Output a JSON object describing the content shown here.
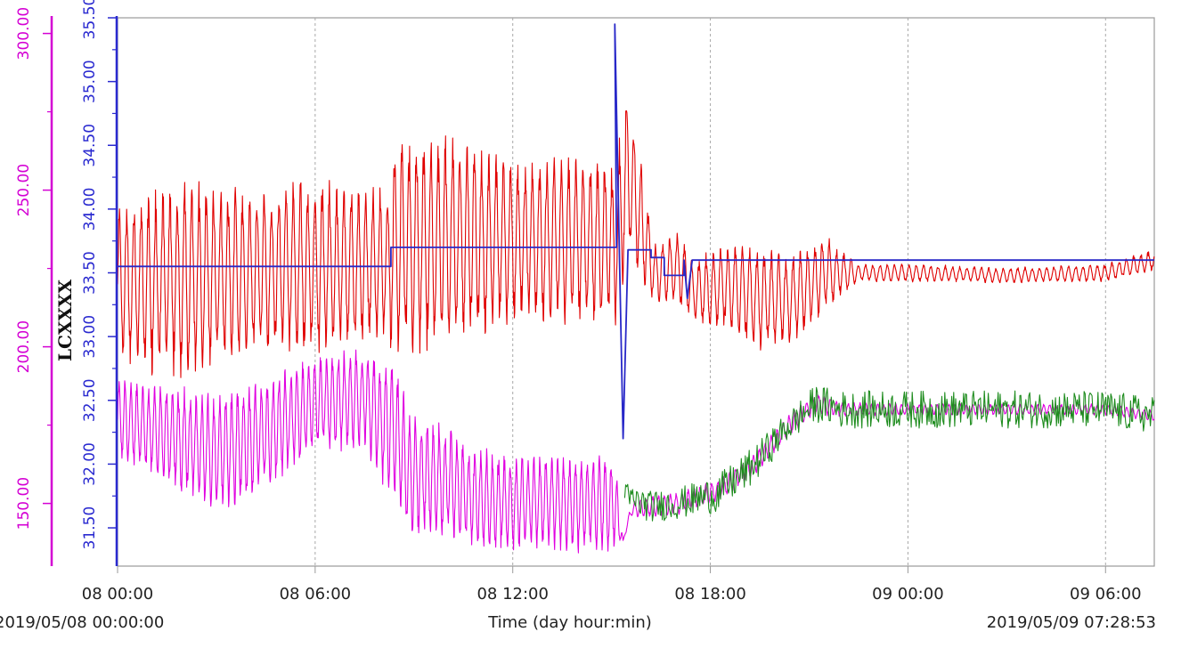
{
  "chart_data": {
    "type": "line",
    "title": "",
    "xlabel": "Time (day hour:min)",
    "start_label": "2019/05/08 00:00:00",
    "end_label": "2019/05/09 07:28:53",
    "y_axis_title": "LCXXXX",
    "x_axis": {
      "unit": "hours from 2019/05/08 00:00",
      "range": [
        0,
        31.48
      ],
      "ticks": [
        {
          "value": 0,
          "label": "08 00:00"
        },
        {
          "value": 6,
          "label": "08 06:00"
        },
        {
          "value": 12,
          "label": "08 12:00"
        },
        {
          "value": 18,
          "label": "08 18:00"
        },
        {
          "value": 24,
          "label": "09 00:00"
        },
        {
          "value": 30,
          "label": "09 06:00"
        }
      ]
    },
    "y_axis_left_outer": {
      "color": "#d400d4",
      "range": [
        130,
        305
      ],
      "ticks": [
        "150.00",
        "200.00",
        "250.00",
        "300.00"
      ]
    },
    "y_axis_left_inner": {
      "color": "#2a2ad0",
      "range": [
        31.2,
        35.5
      ],
      "ticks": [
        "31.50",
        "32.00",
        "32.50",
        "33.00",
        "33.50",
        "34.00",
        "34.50",
        "35.00",
        "35.50"
      ]
    },
    "grid": "vertical dashed at x ticks",
    "legend": "none",
    "series": [
      {
        "axis": "inner",
        "color": "#e00000",
        "style": "oscillating",
        "x": [
          0,
          2,
          4,
          6,
          8.2,
          8.4,
          10,
          12,
          14,
          15.15,
          15.5,
          16.3,
          17,
          17.5,
          18.5,
          19.5,
          20.5,
          21.5,
          22.5,
          24,
          27,
          30,
          31.48
        ],
        "mean": [
          33.4,
          33.45,
          33.5,
          33.55,
          33.55,
          33.7,
          33.75,
          33.75,
          33.75,
          33.75,
          34.3,
          33.5,
          33.55,
          33.35,
          33.4,
          33.3,
          33.3,
          33.5,
          33.5,
          33.5,
          33.48,
          33.5,
          33.6
        ],
        "amp": [
          0.55,
          0.65,
          0.55,
          0.6,
          0.5,
          0.75,
          0.7,
          0.55,
          0.55,
          0.55,
          0.6,
          0.2,
          0.25,
          0.2,
          0.3,
          0.35,
          0.3,
          0.25,
          0.06,
          0.06,
          0.05,
          0.06,
          0.07
        ],
        "period_h": 0.22
      },
      {
        "axis": "inner",
        "color": "#2828c8",
        "style": "step",
        "x": [
          0,
          8.3,
          8.3,
          15.15,
          15.1,
          15.35,
          15.5,
          16.2,
          16.2,
          16.6,
          16.6,
          17.2,
          17.2,
          17.3,
          17.45,
          18,
          24,
          31.48
        ],
        "y": [
          33.55,
          33.55,
          33.7,
          33.7,
          35.45,
          32.2,
          33.68,
          33.68,
          33.62,
          33.62,
          33.48,
          33.48,
          33.6,
          33.3,
          33.6,
          33.6,
          33.6,
          33.6
        ]
      },
      {
        "axis": "outer",
        "color": "#e000e0",
        "style": "oscillating",
        "x": [
          0,
          1.5,
          3,
          4.5,
          6,
          7.5,
          8,
          8.4,
          8.8,
          10,
          11,
          12,
          13,
          14,
          15.1,
          15.35,
          15.6,
          16.2,
          17,
          18.2,
          19.3,
          20.3,
          21.2,
          22,
          24,
          27,
          30,
          31.48
        ],
        "mean": [
          177,
          172,
          166,
          172,
          182,
          184,
          176,
          175,
          160,
          157,
          151,
          150,
          151,
          150,
          150,
          138,
          148,
          149,
          150,
          154,
          162,
          174,
          182,
          180,
          180,
          180,
          180,
          178
        ],
        "amp": [
          11,
          14,
          16,
          16,
          13,
          14,
          16,
          19,
          17,
          15,
          14,
          13,
          13,
          13,
          13,
          0,
          2,
          3,
          3,
          3,
          3,
          3,
          3,
          2,
          1.5,
          1.5,
          1.5,
          1.5
        ],
        "period_h": 0.18
      },
      {
        "axis": "outer",
        "color": "#1e8c1e",
        "style": "noisy",
        "x": [
          15.4,
          16.2,
          17,
          18.2,
          19.3,
          20.3,
          21.2,
          22,
          24,
          27,
          30,
          31.48
        ],
        "mean": [
          152,
          149,
          150,
          153,
          162,
          174,
          182,
          180,
          180,
          180,
          180,
          178
        ],
        "amp": [
          5,
          5,
          5,
          6,
          6,
          5,
          6,
          6,
          6,
          6,
          6,
          6
        ]
      }
    ]
  }
}
